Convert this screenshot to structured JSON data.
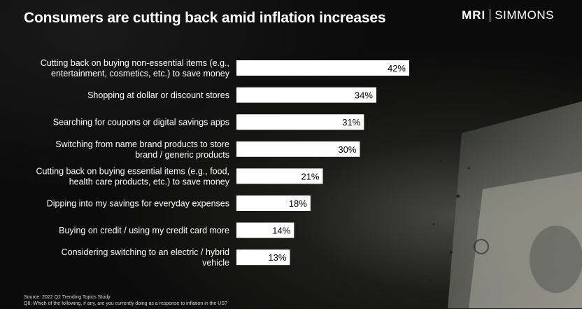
{
  "title": "Consumers are cutting back amid inflation increases",
  "logo": {
    "left": "MRI",
    "right": "SIMMONS"
  },
  "chart_data": {
    "type": "bar",
    "orientation": "horizontal",
    "categories": [
      [
        "Cutting back on buying non-essential items (e.g.,",
        "entertainment, cosmetics, etc.) to save money"
      ],
      [
        "Shopping at dollar or discount stores"
      ],
      [
        "Searching for coupons or digital savings apps"
      ],
      [
        "Switching from name brand products to store",
        "brand / generic products"
      ],
      [
        "Cutting back on buying essential items (e.g., food,",
        "health care products, etc.) to save money"
      ],
      [
        "Dipping into my savings for everyday expenses"
      ],
      [
        "Buying on credit / using my credit card more"
      ],
      [
        "Considering switching to an electric / hybrid",
        "vehicle"
      ]
    ],
    "values": [
      42,
      34,
      31,
      30,
      21,
      18,
      14,
      13
    ],
    "value_labels": [
      "42%",
      "34%",
      "31%",
      "30%",
      "21%",
      "18%",
      "14%",
      "13%"
    ],
    "xlim": [
      0,
      42
    ],
    "grid": false,
    "bar_color": "#ffffff",
    "label_color": "#ffffff",
    "value_label_color": "#000000"
  },
  "source": {
    "line1": "Source: 2022 Q2 Trending Topics Study",
    "line2": "Q8: Which of the following, if any, are you currently doing as a response to inflation in the US?"
  }
}
